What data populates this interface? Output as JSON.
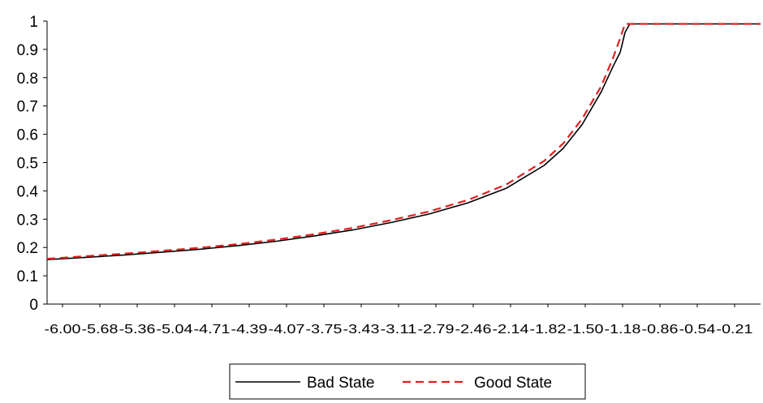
{
  "chart_data": {
    "type": "line",
    "title": "",
    "xlabel": "",
    "ylabel": "",
    "x_tick_labels": [
      "-6.00",
      "-5.68",
      "-5.36",
      "-5.04",
      "-4.71",
      "-4.39",
      "-4.07",
      "-3.75",
      "-3.43",
      "-3.11",
      "-2.79",
      "-2.46",
      "-2.14",
      "-1.82",
      "-1.50",
      "-1.18",
      "-0.86",
      "-0.54",
      "-0.21"
    ],
    "y_tick_labels": [
      "0",
      "0.1",
      "0.2",
      "0.3",
      "0.4",
      "0.5",
      "0.6",
      "0.7",
      "0.8",
      "0.9",
      "1"
    ],
    "xlim": [
      -6.0,
      0.0
    ],
    "ylim": [
      0,
      1
    ],
    "grid": false,
    "legend_position": "bottom",
    "series": [
      {
        "name": "Bad State",
        "color": "#000000",
        "style": "solid",
        "x": [
          -6.0,
          -5.68,
          -5.36,
          -5.04,
          -4.71,
          -4.39,
          -4.07,
          -3.75,
          -3.43,
          -3.11,
          -2.79,
          -2.46,
          -2.14,
          -1.82,
          -1.66,
          -1.5,
          -1.34,
          -1.24,
          -1.18,
          -1.14,
          -1.1,
          -0.86,
          -0.54,
          -0.21,
          0.0
        ],
        "values": [
          0.157,
          0.165,
          0.173,
          0.183,
          0.194,
          0.207,
          0.222,
          0.241,
          0.262,
          0.288,
          0.318,
          0.358,
          0.409,
          0.49,
          0.55,
          0.635,
          0.75,
          0.84,
          0.89,
          0.96,
          0.99,
          0.99,
          0.99,
          0.99,
          0.99
        ]
      },
      {
        "name": "Good State",
        "color": "#e02020",
        "style": "dashed",
        "x": [
          -6.0,
          -5.68,
          -5.36,
          -5.04,
          -4.71,
          -4.39,
          -4.07,
          -3.75,
          -3.43,
          -3.11,
          -2.79,
          -2.46,
          -2.14,
          -1.82,
          -1.66,
          -1.5,
          -1.34,
          -1.24,
          -1.18,
          -1.14,
          -1.1,
          -0.86,
          -0.54,
          -0.21,
          0.0
        ],
        "values": [
          0.16,
          0.169,
          0.178,
          0.188,
          0.199,
          0.212,
          0.228,
          0.247,
          0.269,
          0.296,
          0.327,
          0.368,
          0.422,
          0.506,
          0.567,
          0.655,
          0.77,
          0.87,
          0.94,
          0.99,
          0.99,
          0.99,
          0.99,
          0.99,
          0.99
        ]
      }
    ]
  }
}
